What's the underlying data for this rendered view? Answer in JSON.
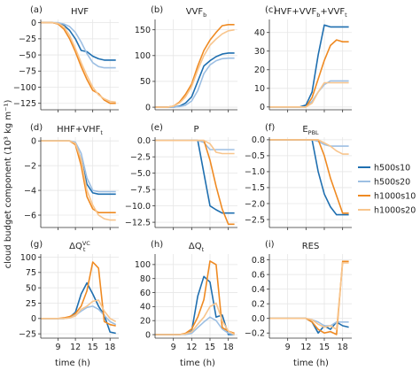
{
  "figure": {
    "ylabel": "cloud budget component (10³ kg m⁻¹)",
    "xlabel": "time (h)"
  },
  "legend": [
    {
      "name": "h500s10",
      "color": "#1f6fb0"
    },
    {
      "name": "h500s20",
      "color": "#9dbfe3"
    },
    {
      "name": "h1000s10",
      "color": "#ef8a22"
    },
    {
      "name": "h1000s20",
      "color": "#f8c58d"
    }
  ],
  "chart_data": [
    {
      "type": "line",
      "letter": "(a)",
      "title": "HVF",
      "xlim": [
        6,
        19.5
      ],
      "ylim": [
        -135,
        5
      ],
      "yticks": [
        0,
        -25,
        -50,
        -75,
        -100,
        -125
      ],
      "ytick_labels": [
        "0",
        "−25",
        "−50",
        "−75",
        "−100",
        "−125"
      ],
      "xticks": [
        9,
        12,
        15,
        18
      ],
      "xtick_labels": [
        "",
        "",
        "",
        ""
      ],
      "x": [
        6,
        7,
        8,
        9,
        10,
        11,
        12,
        13,
        14,
        15,
        16,
        17,
        18,
        19
      ],
      "series": [
        {
          "name": "h500s10",
          "values": [
            0,
            0,
            0,
            -1,
            -4,
            -12,
            -25,
            -43,
            -45,
            -52,
            -56,
            -58,
            -58,
            -58
          ]
        },
        {
          "name": "h500s20",
          "values": [
            0,
            0,
            0,
            0,
            -2,
            -6,
            -15,
            -30,
            -48,
            -62,
            -68,
            -70,
            -70,
            -70
          ]
        },
        {
          "name": "h1000s10",
          "values": [
            0,
            0,
            0,
            -2,
            -10,
            -25,
            -45,
            -68,
            -88,
            -105,
            -110,
            -120,
            -125,
            -125
          ]
        },
        {
          "name": "h1000s20",
          "values": [
            0,
            0,
            0,
            -1,
            -6,
            -20,
            -40,
            -62,
            -82,
            -100,
            -112,
            -118,
            -122,
            -123
          ]
        }
      ]
    },
    {
      "type": "line",
      "letter": "(b)",
      "title": "VVF",
      "title_sub": "b",
      "xlim": [
        6,
        19.5
      ],
      "ylim": [
        -5,
        170
      ],
      "yticks": [
        0,
        50,
        100,
        150
      ],
      "ytick_labels": [
        "0",
        "50",
        "100",
        "150"
      ],
      "xticks": [
        9,
        12,
        15,
        18
      ],
      "xtick_labels": [
        "",
        "",
        "",
        ""
      ],
      "x": [
        6,
        7,
        8,
        9,
        10,
        11,
        12,
        13,
        14,
        15,
        16,
        17,
        18,
        19
      ],
      "series": [
        {
          "name": "h500s10",
          "values": [
            0,
            0,
            0,
            0,
            2,
            8,
            20,
            50,
            80,
            90,
            98,
            103,
            105,
            105
          ]
        },
        {
          "name": "h500s20",
          "values": [
            0,
            0,
            0,
            0,
            1,
            4,
            12,
            32,
            65,
            82,
            90,
            94,
            95,
            95
          ]
        },
        {
          "name": "h1000s10",
          "values": [
            0,
            0,
            0,
            2,
            10,
            25,
            45,
            80,
            110,
            130,
            145,
            158,
            160,
            160
          ]
        },
        {
          "name": "h1000s20",
          "values": [
            0,
            0,
            0,
            2,
            8,
            20,
            40,
            72,
            100,
            120,
            132,
            142,
            148,
            150
          ]
        }
      ]
    },
    {
      "type": "line",
      "letter": "(c)",
      "title": "HVF+VVF",
      "title_sub": "b",
      "title_rest": "+VVF",
      "title_sub2": "t",
      "xlim": [
        6,
        19.5
      ],
      "ylim": [
        -1.5,
        47
      ],
      "yticks": [
        0,
        10,
        20,
        30,
        40
      ],
      "ytick_labels": [
        "0",
        "10",
        "20",
        "30",
        "40"
      ],
      "xticks": [
        9,
        12,
        15,
        18
      ],
      "xtick_labels": [
        "",
        "",
        "",
        ""
      ],
      "x": [
        6,
        7,
        8,
        9,
        10,
        11,
        12,
        13,
        14,
        15,
        16,
        17,
        18,
        19
      ],
      "series": [
        {
          "name": "h500s10",
          "values": [
            0,
            0,
            0,
            0,
            0,
            0,
            1,
            8,
            28,
            44,
            43,
            43,
            43,
            43
          ]
        },
        {
          "name": "h500s20",
          "values": [
            0,
            0,
            0,
            0,
            0,
            0,
            0,
            3,
            8,
            12,
            14,
            14,
            14,
            14
          ]
        },
        {
          "name": "h1000s10",
          "values": [
            0,
            0,
            0,
            0,
            0,
            0,
            0,
            5,
            15,
            25,
            33,
            36,
            35,
            35
          ]
        },
        {
          "name": "h1000s20",
          "values": [
            0,
            0,
            0,
            0,
            0,
            0,
            0,
            2,
            8,
            13,
            13,
            13,
            13,
            13
          ]
        }
      ]
    },
    {
      "type": "line",
      "letter": "(d)",
      "title": "HHF+VHF",
      "title_sub": "t",
      "xlim": [
        6,
        19.5
      ],
      "ylim": [
        -7,
        0.3
      ],
      "yticks": [
        0,
        -2,
        -4,
        -6
      ],
      "ytick_labels": [
        "0",
        "−2",
        "−4",
        "−6"
      ],
      "xticks": [
        9,
        12,
        15,
        18
      ],
      "xtick_labels": [
        "",
        "",
        "",
        ""
      ],
      "x": [
        6,
        7,
        8,
        9,
        10,
        11,
        12,
        13,
        14,
        15,
        16,
        17,
        18,
        19
      ],
      "series": [
        {
          "name": "h500s10",
          "values": [
            0,
            0,
            0,
            0,
            0,
            0,
            -0.2,
            -1.5,
            -3.5,
            -4.2,
            -4.3,
            -4.3,
            -4.3,
            -4.3
          ]
        },
        {
          "name": "h500s20",
          "values": [
            0,
            0,
            0,
            0,
            0,
            0,
            -0.1,
            -1.0,
            -3.0,
            -4.0,
            -4.1,
            -4.1,
            -4.1,
            -4.1
          ]
        },
        {
          "name": "h1000s10",
          "values": [
            0,
            0,
            0,
            0,
            0,
            0,
            -0.3,
            -2.0,
            -4.5,
            -5.5,
            -5.8,
            -5.8,
            -5.8,
            -5.8
          ]
        },
        {
          "name": "h1000s20",
          "values": [
            0,
            0,
            0,
            0,
            0,
            0,
            -0.2,
            -1.5,
            -4.0,
            -5.2,
            -6.0,
            -6.3,
            -6.4,
            -6.4
          ]
        }
      ]
    },
    {
      "type": "line",
      "letter": "(e)",
      "title": "P",
      "xlim": [
        6,
        19.5
      ],
      "ylim": [
        -13.3,
        0.5
      ],
      "yticks": [
        0,
        -2.5,
        -5,
        -7.5,
        -10,
        -12.5
      ],
      "ytick_labels": [
        "0.0",
        "−2.5",
        "−5.0",
        "−7.5",
        "−10.0",
        "−12.5"
      ],
      "xticks": [
        9,
        12,
        15,
        18
      ],
      "xtick_labels": [
        "",
        "",
        "",
        ""
      ],
      "x": [
        6,
        7,
        8,
        9,
        10,
        11,
        12,
        13,
        14,
        15,
        16,
        17,
        18,
        19
      ],
      "series": [
        {
          "name": "h500s10",
          "values": [
            0,
            0,
            0,
            0,
            0,
            0,
            0,
            0,
            -5,
            -10,
            -10.6,
            -11.1,
            -11.1,
            -11.1
          ]
        },
        {
          "name": "h500s20",
          "values": [
            0,
            0,
            0,
            0,
            0,
            0,
            0,
            0,
            -0.3,
            -1.4,
            -1.4,
            -1.4,
            -1.4,
            -1.4
          ]
        },
        {
          "name": "h1000s10",
          "values": [
            0,
            0,
            0,
            0,
            0,
            0,
            0,
            0,
            0,
            -3,
            -7,
            -10.5,
            -12.8,
            -12.8
          ]
        },
        {
          "name": "h1000s20",
          "values": [
            0,
            0,
            0,
            0,
            0,
            0,
            0,
            0,
            0,
            -0.5,
            -1.8,
            -2.0,
            -2.0,
            -2.0
          ]
        }
      ]
    },
    {
      "type": "line",
      "letter": "(f)",
      "title": "E",
      "title_sub": "PBL",
      "xlim": [
        6,
        19.5
      ],
      "ylim": [
        -2.75,
        0.08
      ],
      "yticks": [
        0,
        -0.5,
        -1,
        -1.5,
        -2,
        -2.5
      ],
      "ytick_labels": [
        "0.0",
        "−0.5",
        "−1.0",
        "−1.5",
        "−2.0",
        "−2.5"
      ],
      "xticks": [
        9,
        12,
        15,
        18
      ],
      "xtick_labels": [
        "",
        "",
        "",
        ""
      ],
      "x": [
        6,
        7,
        8,
        9,
        10,
        11,
        12,
        13,
        14,
        15,
        16,
        17,
        18,
        19
      ],
      "series": [
        {
          "name": "h500s10",
          "values": [
            0,
            0,
            0,
            0,
            0,
            0,
            0,
            0,
            -1.0,
            -1.7,
            -2.1,
            -2.35,
            -2.35,
            -2.35
          ]
        },
        {
          "name": "h500s20",
          "values": [
            0,
            0,
            0,
            0,
            0,
            0,
            0,
            0,
            -0.05,
            -0.15,
            -0.2,
            -0.2,
            -0.2,
            -0.2
          ]
        },
        {
          "name": "h1000s10",
          "values": [
            0,
            0,
            0,
            0,
            0,
            0,
            0,
            0,
            0,
            -0.5,
            -1.2,
            -1.75,
            -2.3,
            -2.3
          ]
        },
        {
          "name": "h1000s20",
          "values": [
            0,
            0,
            0,
            0,
            0,
            0,
            0,
            0,
            0,
            -0.1,
            -0.2,
            -0.35,
            -0.45,
            -0.45
          ]
        }
      ]
    },
    {
      "type": "line",
      "letter": "(g)",
      "title": "ΔQ",
      "title_sub": "t",
      "title_sup": "VC",
      "xlim": [
        6,
        19.5
      ],
      "ylim": [
        -32,
        105
      ],
      "yticks": [
        100,
        75,
        50,
        25,
        0,
        -25
      ],
      "ytick_labels": [
        "100",
        "75",
        "50",
        "25",
        "0",
        "−25"
      ],
      "xticks": [
        9,
        12,
        15,
        18
      ],
      "xtick_labels": [
        "9",
        "12",
        "15",
        "18"
      ],
      "x": [
        6,
        7,
        8,
        9,
        10,
        11,
        12,
        13,
        14,
        15,
        16,
        17,
        18,
        19
      ],
      "series": [
        {
          "name": "h500s10",
          "values": [
            0,
            0,
            0,
            0,
            0,
            2,
            10,
            40,
            58,
            40,
            20,
            5,
            -22,
            -24
          ]
        },
        {
          "name": "h500s20",
          "values": [
            0,
            0,
            0,
            0,
            0,
            1,
            5,
            12,
            18,
            20,
            15,
            5,
            -5,
            -10
          ]
        },
        {
          "name": "h1000s10",
          "values": [
            0,
            0,
            0,
            0,
            1,
            3,
            8,
            20,
            45,
            92,
            82,
            -5,
            -10,
            -12
          ]
        },
        {
          "name": "h1000s20",
          "values": [
            0,
            0,
            0,
            0,
            0,
            1,
            4,
            15,
            20,
            28,
            30,
            12,
            0,
            -5
          ]
        }
      ]
    },
    {
      "type": "line",
      "letter": "(h)",
      "title": "ΔQ",
      "title_sub": "t",
      "xlim": [
        6,
        19.5
      ],
      "ylim": [
        -5,
        115
      ],
      "yticks": [
        0,
        20,
        40,
        60,
        80,
        100
      ],
      "ytick_labels": [
        "0",
        "20",
        "40",
        "60",
        "80",
        "100"
      ],
      "xticks": [
        9,
        12,
        15,
        18
      ],
      "xtick_labels": [
        "9",
        "12",
        "15",
        "18"
      ],
      "x": [
        6,
        7,
        8,
        9,
        10,
        11,
        12,
        13,
        14,
        15,
        16,
        17,
        18,
        19
      ],
      "series": [
        {
          "name": "h500s10",
          "values": [
            0,
            0,
            0,
            0,
            0,
            1,
            5,
            55,
            83,
            75,
            25,
            28,
            0,
            0
          ]
        },
        {
          "name": "h500s20",
          "values": [
            0,
            0,
            0,
            0,
            0,
            0,
            2,
            10,
            18,
            25,
            20,
            8,
            2,
            0
          ]
        },
        {
          "name": "h1000s10",
          "values": [
            0,
            0,
            0,
            0,
            0,
            2,
            8,
            25,
            50,
            105,
            100,
            10,
            5,
            2
          ]
        },
        {
          "name": "h1000s20",
          "values": [
            0,
            0,
            0,
            0,
            0,
            1,
            4,
            15,
            25,
            40,
            45,
            20,
            5,
            0
          ]
        }
      ]
    },
    {
      "type": "line",
      "letter": "(i)",
      "title": "RES",
      "xlim": [
        6,
        19.5
      ],
      "ylim": [
        -0.27,
        0.88
      ],
      "yticks": [
        0.8,
        0.6,
        0.4,
        0.2,
        0.0,
        -0.2
      ],
      "ytick_labels": [
        "0.8",
        "0.6",
        "0.4",
        "0.2",
        "0.0",
        "−0.2"
      ],
      "xticks": [
        9,
        12,
        15,
        18
      ],
      "xtick_labels": [
        "9",
        "12",
        "15",
        "18"
      ],
      "x": [
        6,
        7,
        8,
        9,
        10,
        11,
        12,
        13,
        14,
        15,
        16,
        17,
        18,
        19
      ],
      "series": [
        {
          "name": "h500s10",
          "values": [
            0,
            0,
            0,
            0,
            0,
            0,
            0,
            -0.05,
            -0.2,
            -0.1,
            -0.15,
            -0.05,
            -0.1,
            -0.12
          ]
        },
        {
          "name": "h500s20",
          "values": [
            0,
            0,
            0,
            0,
            0,
            0,
            0,
            -0.02,
            -0.05,
            -0.1,
            -0.1,
            -0.05,
            -0.05,
            -0.05
          ]
        },
        {
          "name": "h1000s10",
          "values": [
            0,
            0,
            0,
            0,
            0,
            0,
            0,
            -0.05,
            -0.15,
            -0.2,
            -0.18,
            -0.22,
            0.78,
            0.78
          ]
        },
        {
          "name": "h1000s20",
          "values": [
            0,
            0,
            0,
            0,
            0,
            0,
            0,
            -0.02,
            -0.08,
            -0.12,
            -0.1,
            -0.15,
            0.76,
            0.76
          ]
        }
      ]
    }
  ]
}
